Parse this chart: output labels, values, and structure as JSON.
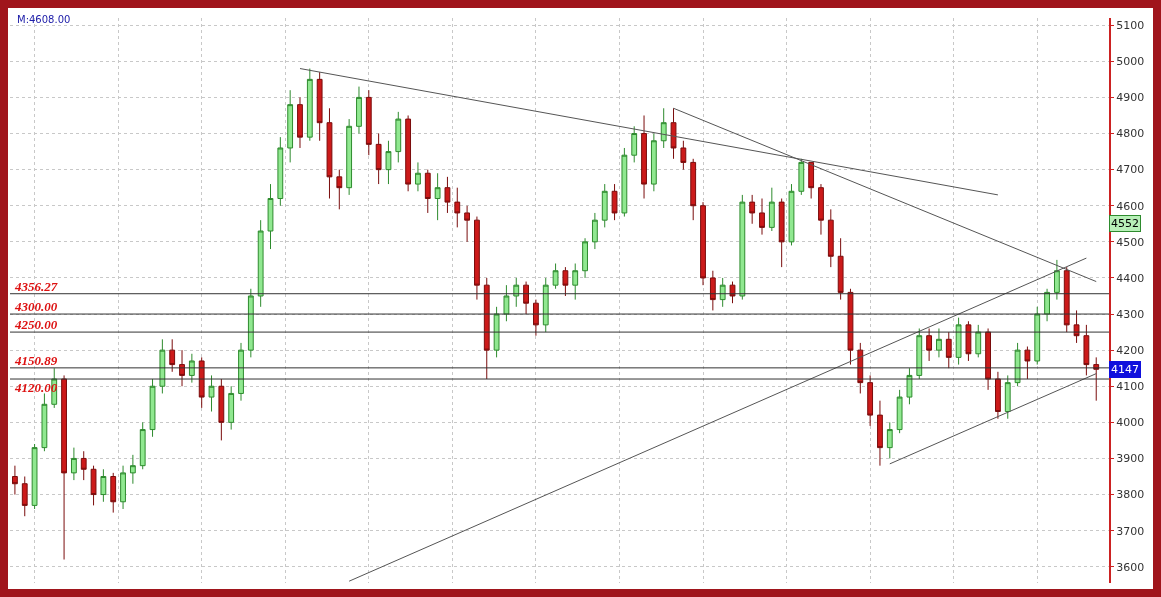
{
  "chart_data": {
    "type": "candlestick",
    "categories": [
      null,
      null,
      null,
      null,
      null,
      null,
      null,
      null,
      null,
      null,
      null,
      null,
      null,
      null,
      null,
      null,
      null,
      null,
      null,
      null,
      null,
      null,
      null,
      null,
      null,
      null,
      null,
      null,
      null,
      null,
      null,
      null,
      null,
      null,
      null,
      null,
      null,
      null,
      null,
      null,
      null,
      null,
      null,
      null,
      null,
      null,
      null,
      null,
      null,
      null,
      null,
      null,
      null,
      null,
      null,
      null,
      null,
      null,
      null,
      null,
      null,
      null,
      null,
      null,
      null,
      null,
      null,
      null,
      null,
      null,
      null,
      null,
      null,
      null,
      null,
      null,
      null,
      null,
      null,
      null,
      null,
      null,
      null,
      null,
      null,
      null,
      null,
      null,
      null,
      null,
      null,
      null,
      null,
      null,
      null,
      null,
      null,
      null,
      null,
      null,
      null,
      null,
      null,
      null,
      null,
      null,
      null,
      null,
      null,
      null,
      null
    ],
    "ohlc": [
      [
        3850,
        3880,
        3800,
        3830
      ],
      [
        3830,
        3850,
        3740,
        3770
      ],
      [
        3770,
        3940,
        3760,
        3930
      ],
      [
        3930,
        4080,
        3920,
        4050
      ],
      [
        4050,
        4150,
        4040,
        4120
      ],
      [
        4120,
        4130,
        3620,
        3860
      ],
      [
        3860,
        3930,
        3840,
        3900
      ],
      [
        3900,
        3920,
        3840,
        3870
      ],
      [
        3870,
        3880,
        3770,
        3800
      ],
      [
        3800,
        3870,
        3780,
        3850
      ],
      [
        3850,
        3860,
        3750,
        3780
      ],
      [
        3780,
        3880,
        3760,
        3860
      ],
      [
        3860,
        3910,
        3830,
        3880
      ],
      [
        3880,
        4000,
        3870,
        3980
      ],
      [
        3980,
        4120,
        3960,
        4100
      ],
      [
        4100,
        4230,
        4080,
        4200
      ],
      [
        4200,
        4230,
        4140,
        4160
      ],
      [
        4160,
        4200,
        4100,
        4130
      ],
      [
        4130,
        4190,
        4110,
        4170
      ],
      [
        4170,
        4180,
        4040,
        4070
      ],
      [
        4070,
        4130,
        4030,
        4100
      ],
      [
        4100,
        4120,
        3950,
        4000
      ],
      [
        4000,
        4100,
        3980,
        4080
      ],
      [
        4080,
        4220,
        4060,
        4200
      ],
      [
        4200,
        4370,
        4180,
        4350
      ],
      [
        4350,
        4560,
        4320,
        4530
      ],
      [
        4530,
        4660,
        4480,
        4620
      ],
      [
        4620,
        4790,
        4600,
        4760
      ],
      [
        4760,
        4920,
        4720,
        4880
      ],
      [
        4880,
        4900,
        4760,
        4790
      ],
      [
        4790,
        4980,
        4780,
        4950
      ],
      [
        4950,
        4970,
        4780,
        4830
      ],
      [
        4830,
        4870,
        4620,
        4680
      ],
      [
        4680,
        4700,
        4590,
        4650
      ],
      [
        4650,
        4840,
        4630,
        4820
      ],
      [
        4820,
        4930,
        4800,
        4900
      ],
      [
        4900,
        4920,
        4740,
        4770
      ],
      [
        4770,
        4800,
        4660,
        4700
      ],
      [
        4700,
        4780,
        4660,
        4750
      ],
      [
        4750,
        4860,
        4720,
        4840
      ],
      [
        4840,
        4850,
        4640,
        4660
      ],
      [
        4660,
        4720,
        4640,
        4690
      ],
      [
        4690,
        4700,
        4580,
        4620
      ],
      [
        4620,
        4690,
        4560,
        4650
      ],
      [
        4650,
        4680,
        4580,
        4610
      ],
      [
        4610,
        4650,
        4540,
        4580
      ],
      [
        4580,
        4600,
        4500,
        4560
      ],
      [
        4560,
        4570,
        4340,
        4380
      ],
      [
        4380,
        4400,
        4120,
        4200
      ],
      [
        4200,
        4320,
        4180,
        4300
      ],
      [
        4300,
        4380,
        4280,
        4350
      ],
      [
        4350,
        4400,
        4320,
        4380
      ],
      [
        4380,
        4390,
        4300,
        4330
      ],
      [
        4330,
        4340,
        4240,
        4270
      ],
      [
        4270,
        4400,
        4250,
        4380
      ],
      [
        4380,
        4440,
        4370,
        4420
      ],
      [
        4420,
        4430,
        4350,
        4380
      ],
      [
        4380,
        4440,
        4340,
        4420
      ],
      [
        4420,
        4510,
        4400,
        4500
      ],
      [
        4500,
        4580,
        4480,
        4560
      ],
      [
        4560,
        4660,
        4540,
        4640
      ],
      [
        4640,
        4660,
        4560,
        4580
      ],
      [
        4580,
        4760,
        4570,
        4740
      ],
      [
        4740,
        4820,
        4720,
        4800
      ],
      [
        4800,
        4850,
        4620,
        4660
      ],
      [
        4660,
        4800,
        4640,
        4780
      ],
      [
        4780,
        4870,
        4760,
        4830
      ],
      [
        4830,
        4870,
        4730,
        4760
      ],
      [
        4760,
        4780,
        4700,
        4720
      ],
      [
        4720,
        4730,
        4560,
        4600
      ],
      [
        4600,
        4610,
        4380,
        4400
      ],
      [
        4400,
        4420,
        4310,
        4340
      ],
      [
        4340,
        4400,
        4320,
        4380
      ],
      [
        4380,
        4390,
        4330,
        4350
      ],
      [
        4350,
        4630,
        4340,
        4610
      ],
      [
        4610,
        4630,
        4550,
        4580
      ],
      [
        4580,
        4620,
        4520,
        4540
      ],
      [
        4540,
        4650,
        4530,
        4610
      ],
      [
        4610,
        4620,
        4430,
        4500
      ],
      [
        4500,
        4660,
        4490,
        4640
      ],
      [
        4640,
        4730,
        4630,
        4720
      ],
      [
        4720,
        4720,
        4620,
        4650
      ],
      [
        4650,
        4660,
        4520,
        4560
      ],
      [
        4560,
        4590,
        4430,
        4460
      ],
      [
        4460,
        4510,
        4340,
        4360
      ],
      [
        4360,
        4370,
        4160,
        4200
      ],
      [
        4200,
        4220,
        4080,
        4110
      ],
      [
        4110,
        4130,
        3990,
        4020
      ],
      [
        4020,
        4060,
        3880,
        3930
      ],
      [
        3930,
        4000,
        3900,
        3980
      ],
      [
        3980,
        4090,
        3970,
        4070
      ],
      [
        4070,
        4150,
        4050,
        4130
      ],
      [
        4130,
        4260,
        4120,
        4240
      ],
      [
        4240,
        4260,
        4170,
        4200
      ],
      [
        4200,
        4260,
        4180,
        4230
      ],
      [
        4230,
        4250,
        4150,
        4180
      ],
      [
        4180,
        4290,
        4160,
        4270
      ],
      [
        4270,
        4280,
        4170,
        4190
      ],
      [
        4190,
        4270,
        4180,
        4250
      ],
      [
        4250,
        4260,
        4090,
        4120
      ],
      [
        4120,
        4140,
        4010,
        4030
      ],
      [
        4030,
        4130,
        4010,
        4110
      ],
      [
        4110,
        4220,
        4100,
        4200
      ],
      [
        4200,
        4210,
        4120,
        4170
      ],
      [
        4170,
        4320,
        4160,
        4300
      ],
      [
        4300,
        4370,
        4280,
        4360
      ],
      [
        4360,
        4450,
        4340,
        4420
      ],
      [
        4420,
        4430,
        4250,
        4270
      ],
      [
        4270,
        4310,
        4220,
        4240
      ],
      [
        4240,
        4270,
        4130,
        4160
      ],
      [
        4160,
        4180,
        4060,
        4147
      ]
    ],
    "series": [
      {
        "type": "line",
        "color": "#555555",
        "values": [
          null,
          null,
          null,
          null,
          null,
          null,
          null,
          null,
          null,
          null,
          null,
          null,
          null,
          null,
          null,
          null,
          null,
          null,
          null,
          null,
          null,
          null,
          null,
          null,
          null,
          null,
          null,
          null,
          null,
          4980,
          null,
          null,
          null,
          null,
          null,
          null,
          null,
          null,
          null,
          null,
          null,
          null,
          null,
          null,
          null,
          null,
          null,
          null,
          null,
          null,
          null,
          null,
          null,
          null,
          null,
          null,
          null,
          null,
          null,
          null,
          null,
          null,
          null,
          null,
          null,
          null,
          null,
          null,
          null,
          null,
          null,
          null,
          null,
          null,
          null,
          null,
          null,
          null,
          null,
          null,
          null,
          null,
          null,
          null,
          null,
          null,
          null,
          null,
          null,
          null,
          null,
          null,
          null,
          null,
          null,
          null,
          null,
          null,
          null,
          null,
          4630,
          null,
          null,
          null,
          null,
          null,
          null,
          null,
          null,
          null,
          null
        ]
      },
      {
        "type": "line",
        "color": "#555555",
        "values": [
          null,
          null,
          null,
          null,
          null,
          null,
          null,
          null,
          null,
          null,
          null,
          null,
          null,
          null,
          null,
          null,
          null,
          null,
          null,
          null,
          null,
          null,
          null,
          null,
          null,
          null,
          null,
          null,
          null,
          null,
          null,
          null,
          null,
          null,
          null,
          null,
          null,
          null,
          null,
          null,
          null,
          null,
          null,
          null,
          null,
          null,
          null,
          null,
          null,
          null,
          null,
          null,
          null,
          null,
          null,
          null,
          null,
          null,
          null,
          null,
          null,
          null,
          null,
          null,
          null,
          null,
          null,
          4870,
          null,
          null,
          null,
          null,
          null,
          null,
          null,
          null,
          null,
          null,
          null,
          null,
          null,
          null,
          null,
          null,
          null,
          null,
          null,
          null,
          null,
          null,
          null,
          null,
          null,
          null,
          null,
          null,
          null,
          null,
          null,
          null,
          null,
          null,
          null,
          null,
          null,
          null,
          null,
          null,
          null,
          null,
          4390
        ]
      },
      {
        "type": "line",
        "color": "#555555",
        "values": [
          null,
          null,
          null,
          null,
          null,
          null,
          null,
          null,
          null,
          null,
          null,
          null,
          null,
          null,
          null,
          null,
          null,
          null,
          null,
          null,
          null,
          null,
          null,
          null,
          null,
          null,
          null,
          null,
          null,
          null,
          null,
          null,
          null,
          null,
          3560,
          null,
          null,
          null,
          null,
          null,
          null,
          null,
          null,
          null,
          null,
          null,
          null,
          null,
          null,
          null,
          null,
          null,
          null,
          null,
          null,
          null,
          null,
          null,
          null,
          null,
          null,
          null,
          null,
          null,
          null,
          null,
          null,
          null,
          null,
          null,
          null,
          null,
          null,
          null,
          null,
          null,
          null,
          null,
          null,
          null,
          null,
          null,
          null,
          null,
          null,
          null,
          null,
          null,
          null,
          null,
          null,
          null,
          null,
          null,
          null,
          null,
          null,
          null,
          null,
          null,
          null,
          null,
          null,
          null,
          null,
          null,
          null,
          null,
          null,
          4455,
          null
        ]
      },
      {
        "type": "line",
        "color": "#555555",
        "values": [
          null,
          null,
          null,
          null,
          null,
          null,
          null,
          null,
          null,
          null,
          null,
          null,
          null,
          null,
          null,
          null,
          null,
          null,
          null,
          null,
          null,
          null,
          null,
          null,
          null,
          null,
          null,
          null,
          null,
          null,
          null,
          null,
          null,
          null,
          null,
          null,
          null,
          null,
          null,
          null,
          null,
          null,
          null,
          null,
          null,
          null,
          null,
          null,
          null,
          null,
          null,
          null,
          null,
          null,
          null,
          null,
          null,
          null,
          null,
          null,
          null,
          null,
          null,
          null,
          null,
          null,
          null,
          null,
          null,
          null,
          null,
          null,
          null,
          null,
          null,
          null,
          null,
          null,
          null,
          null,
          null,
          null,
          null,
          null,
          null,
          null,
          null,
          null,
          null,
          3885,
          null,
          null,
          null,
          null,
          null,
          null,
          null,
          null,
          null,
          null,
          null,
          null,
          null,
          null,
          null,
          null,
          null,
          null,
          null,
          null,
          4135
        ]
      }
    ],
    "ref_lines": [
      {
        "axis": "y",
        "value": 4356.27,
        "label": "4356.27",
        "color": "#333333"
      },
      {
        "axis": "y",
        "value": 4300,
        "label": "4300.00",
        "color": "#333333"
      },
      {
        "axis": "y",
        "value": 4250,
        "label": "4250.00",
        "color": "#333333"
      },
      {
        "axis": "y",
        "value": 4150.89,
        "label": "4150.89",
        "color": "#333333"
      },
      {
        "axis": "y",
        "value": 4120,
        "label": "4120.00",
        "color": "#333333"
      }
    ],
    "annotations": [
      "M:4608.00",
      {
        "text": "4552",
        "y": 4552
      },
      {
        "text": "4147",
        "y": 4147
      }
    ],
    "ylim": [
      3555,
      5120
    ],
    "yticks": [
      3600,
      3700,
      3800,
      3900,
      4000,
      4100,
      4200,
      4300,
      4400,
      4500,
      4600,
      4700,
      4800,
      4900,
      5000,
      5100
    ],
    "grid": true,
    "tick_labels": "y"
  }
}
